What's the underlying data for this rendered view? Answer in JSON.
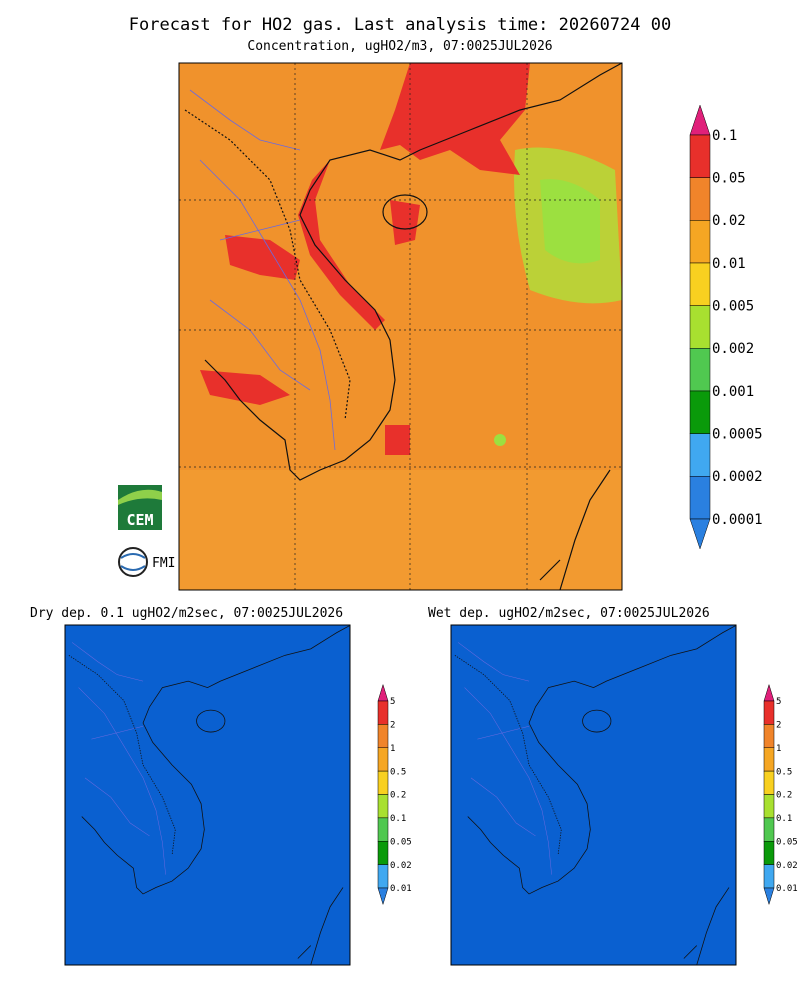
{
  "header": {
    "title": "Forecast for HO2 gas. Last analysis time: 20260724 00",
    "subtitle": "Concentration, ugHO2/m3, 07:0025JUL2026"
  },
  "main_colorbar": {
    "labels": [
      "0.1",
      "0.05",
      "0.02",
      "0.01",
      "0.005",
      "0.002",
      "0.001",
      "0.0005",
      "0.0002",
      "0.0001"
    ]
  },
  "panels": [
    {
      "title": "Dry dep. 0.1 ugHO2/m2sec, 07:0025JUL2026",
      "colorbar_labels": [
        "5",
        "2",
        "1",
        "0.5",
        "0.2",
        "0.1",
        "0.05",
        "0.02",
        "0.01"
      ]
    },
    {
      "title": "Wet dep. ugHO2/m2sec, 07:0025JUL2026",
      "colorbar_labels": [
        "5",
        "2",
        "1",
        "0.5",
        "0.2",
        "0.1",
        "0.05",
        "0.02",
        "0.01"
      ]
    }
  ],
  "logos": {
    "cem": "CEM",
    "fmi": "FMI"
  }
}
